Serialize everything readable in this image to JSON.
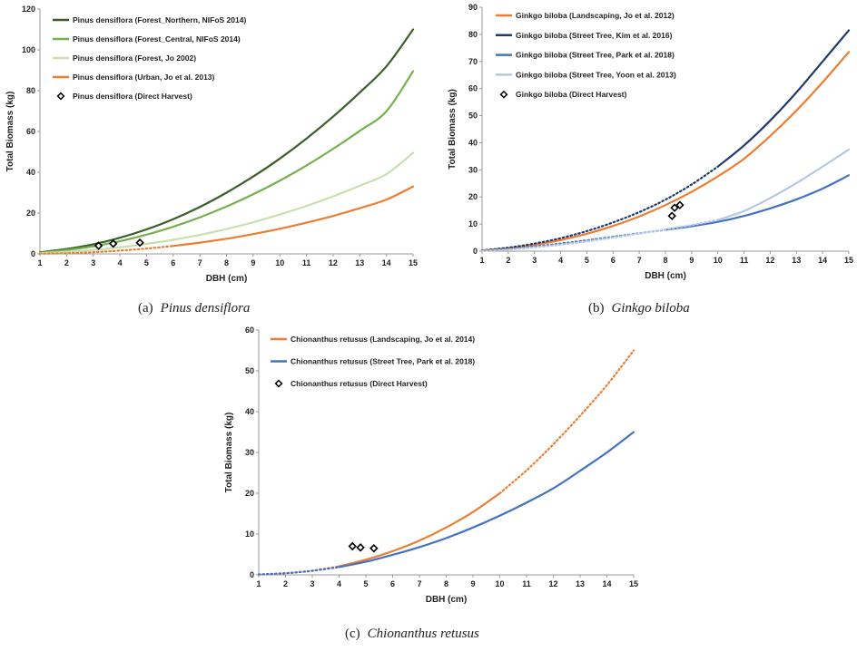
{
  "captions": [
    {
      "label": "(a)",
      "name": "Pinus densiflora"
    },
    {
      "label": "(b)",
      "name": "Ginkgo biloba"
    },
    {
      "label": "(c)",
      "name": "Chionanthus retusus"
    }
  ],
  "colors": {
    "dark_green": "#3a5f2a",
    "mid_green": "#74b04c",
    "light_green": "#c8e0b0",
    "orange": "#ed7d31",
    "dark_blue": "#1f3a6b",
    "mid_blue": "#4472c4",
    "light_blue": "#b4c7e7"
  },
  "chart_data": [
    {
      "id": "a",
      "type": "line",
      "xlabel": "DBH (cm)",
      "ylabel": "Total Biomass (kg)",
      "xlim": [
        1,
        15
      ],
      "ylim": [
        0,
        120
      ],
      "xticks": [
        1,
        2,
        3,
        4,
        5,
        6,
        7,
        8,
        9,
        10,
        11,
        12,
        13,
        14,
        15
      ],
      "yticks": [
        0,
        20,
        40,
        60,
        80,
        100,
        120
      ],
      "grid": false,
      "legend_position": "top-left",
      "x": [
        1,
        2,
        3,
        4,
        5,
        6,
        7,
        8,
        9,
        10,
        11,
        12,
        13,
        14,
        15
      ],
      "series": [
        {
          "name": "Pinus densiflora (Forest_Northern, NIFoS 2014)",
          "color": "#3a5f2a",
          "style": "solid",
          "values": [
            0.8,
            2.4,
            4.7,
            7.9,
            12.0,
            17.0,
            23.0,
            30.0,
            37.9,
            46.7,
            56.5,
            67.3,
            79.1,
            91.9,
            110.0
          ]
        },
        {
          "name": "Pinus densiflora (Forest_Central, NIFoS 2014)",
          "color": "#74b04c",
          "style": "solid",
          "values": [
            0.6,
            1.9,
            3.7,
            6.2,
            9.4,
            13.3,
            17.9,
            23.2,
            29.2,
            35.9,
            43.3,
            51.5,
            60.3,
            69.9,
            89.5
          ]
        },
        {
          "name": "Pinus densiflora (Forest, Jo 2002)",
          "color": "#c8e0b0",
          "style": "solid",
          "values": [
            0.3,
            1.0,
            1.9,
            3.2,
            4.9,
            6.9,
            9.3,
            12.2,
            15.5,
            19.3,
            23.5,
            28.2,
            33.4,
            39.1,
            49.5
          ]
        },
        {
          "name": "Pinus densiflora (Urban, Jo et al. 2013)",
          "color": "#ed7d31",
          "style": "mixed",
          "dotted_until": 6,
          "values": [
            0.1,
            0.3,
            0.8,
            1.6,
            2.6,
            3.9,
            5.5,
            7.4,
            9.7,
            12.3,
            15.3,
            18.6,
            22.4,
            26.6,
            33.0
          ]
        }
      ],
      "points": {
        "name": "Pinus densiflora (Direct Harvest)",
        "x": [
          3.2,
          3.75,
          4.75
        ],
        "y": [
          4.0,
          5.0,
          5.5
        ]
      }
    },
    {
      "id": "b",
      "type": "line",
      "xlabel": "DBH (cm)",
      "ylabel": "Total Biomass (kg)",
      "xlim": [
        1,
        15
      ],
      "ylim": [
        0,
        90
      ],
      "xticks": [
        1,
        2,
        3,
        4,
        5,
        6,
        7,
        8,
        9,
        10,
        11,
        12,
        13,
        14,
        15
      ],
      "yticks": [
        0,
        10,
        20,
        30,
        40,
        50,
        60,
        70,
        80,
        90
      ],
      "grid": false,
      "legend_position": "top-left",
      "x": [
        1,
        2,
        3,
        4,
        5,
        6,
        7,
        8,
        9,
        10,
        11,
        12,
        13,
        14,
        15
      ],
      "series": [
        {
          "name": "Ginkgo biloba (Landscaping, Jo et al. 2012)",
          "color": "#ed7d31",
          "style": "solid",
          "values": [
            0.2,
            1.0,
            2.3,
            4.1,
            6.4,
            9.3,
            12.8,
            17.0,
            21.9,
            27.6,
            34.1,
            42.5,
            51.9,
            62.3,
            73.5
          ]
        },
        {
          "name": "Ginkgo biloba (Street Tree, Kim et al. 2016)",
          "color": "#1f3a6b",
          "style": "mixed",
          "dotted_until": 10,
          "values": [
            0.3,
            1.3,
            2.8,
            4.8,
            7.4,
            10.6,
            14.4,
            19.0,
            24.6,
            31.2,
            39.0,
            48.2,
            58.6,
            70.0,
            81.5
          ]
        },
        {
          "name": "Ginkgo biloba (Street Tree, Park et al. 2018)",
          "color": "#4472c4",
          "style": "mixed",
          "dotted_until": 8,
          "values": [
            0.2,
            0.8,
            1.7,
            2.8,
            4.0,
            5.3,
            6.6,
            7.9,
            9.2,
            10.8,
            13.0,
            15.8,
            19.1,
            23.1,
            28.0
          ]
        },
        {
          "name": "Ginkgo biloba (Street Tree, Yoon et al. 2013)",
          "color": "#b4c7e7",
          "style": "mixed",
          "dotted_until": 10,
          "values": [
            0.1,
            0.6,
            1.4,
            2.4,
            3.6,
            5.0,
            6.5,
            8.0,
            9.6,
            11.5,
            14.8,
            19.6,
            25.1,
            31.2,
            37.5
          ]
        }
      ],
      "points": {
        "name": "Ginkgo biloba (Direct Harvest)",
        "x": [
          8.25,
          8.35,
          8.55
        ],
        "y": [
          13.0,
          16.0,
          17.0
        ]
      }
    },
    {
      "id": "c",
      "type": "line",
      "xlabel": "DBH (cm)",
      "ylabel": "Total Biomass (kg)",
      "xlim": [
        1,
        15
      ],
      "ylim": [
        0,
        60
      ],
      "xticks": [
        1,
        2,
        3,
        4,
        5,
        6,
        7,
        8,
        9,
        10,
        11,
        12,
        13,
        14,
        15
      ],
      "yticks": [
        0,
        10,
        20,
        30,
        40,
        50,
        60
      ],
      "grid": false,
      "legend_position": "top-left",
      "x": [
        1,
        2,
        3,
        4,
        5,
        6,
        7,
        8,
        9,
        10,
        11,
        12,
        13,
        14,
        15
      ],
      "series": [
        {
          "name": "Chionanthus retusus (Landscaping, Jo et al. 2014)",
          "color": "#ed7d31",
          "style": "mixed",
          "solid_range": [
            4,
            10
          ],
          "values": [
            0.1,
            0.4,
            1.0,
            2.1,
            3.7,
            5.8,
            8.4,
            11.6,
            15.4,
            20.0,
            25.6,
            32.0,
            39.0,
            46.5,
            55.0
          ]
        },
        {
          "name": "Chionanthus retusus (Street Tree, Park et al. 2018)",
          "color": "#4472c4",
          "style": "mixed",
          "solid_range": [
            4,
            15
          ],
          "values": [
            0.1,
            0.4,
            1.0,
            1.9,
            3.2,
            4.9,
            6.8,
            9.0,
            11.6,
            14.5,
            17.7,
            21.2,
            25.5,
            30.0,
            35.0
          ]
        }
      ],
      "points": {
        "name": "Chionanthus retusus (Direct Harvest)",
        "x": [
          4.5,
          4.8,
          5.3
        ],
        "y": [
          7.0,
          6.7,
          6.5
        ]
      }
    }
  ]
}
